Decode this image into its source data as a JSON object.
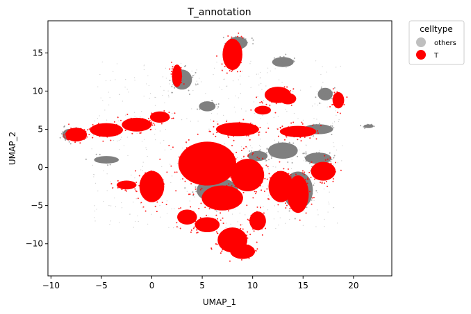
{
  "chart_data": {
    "type": "scatter",
    "title": "T_annotation",
    "xlabel": "UMAP_1",
    "ylabel": "UMAP_2",
    "xlim": [
      -10.3,
      23.8
    ],
    "ylim": [
      -14.2,
      19.2
    ],
    "xticks": [
      -10,
      -5,
      0,
      5,
      10,
      15,
      20
    ],
    "yticks": [
      -10,
      -5,
      0,
      5,
      10,
      15
    ],
    "xtick_labels": [
      "−10",
      "−5",
      "0",
      "5",
      "10",
      "15",
      "20"
    ],
    "ytick_labels": [
      "−10",
      "−5",
      "0",
      "5",
      "10",
      "15"
    ],
    "grid": false,
    "legend": {
      "title": "celltype",
      "placement": "outside-right-top",
      "entries": [
        {
          "label": "others",
          "color": "#bfbfbf"
        },
        {
          "label": "T",
          "color": "#ff0000"
        }
      ]
    },
    "series": [
      {
        "name": "others",
        "color": "#808080",
        "clusters": [
          {
            "x": -8.2,
            "y": 4.3,
            "rx": 0.8,
            "ry": 0.9
          },
          {
            "x": 3.0,
            "y": 11.5,
            "rx": 1.2,
            "ry": 1.6
          },
          {
            "x": 5.5,
            "y": 8.0,
            "rx": 1.0,
            "ry": 0.8
          },
          {
            "x": 13.0,
            "y": 13.8,
            "rx": 1.3,
            "ry": 0.8
          },
          {
            "x": 17.2,
            "y": 9.6,
            "rx": 0.9,
            "ry": 1.0
          },
          {
            "x": 21.5,
            "y": 5.4,
            "rx": 0.6,
            "ry": 0.3
          },
          {
            "x": 13.0,
            "y": 2.2,
            "rx": 1.8,
            "ry": 1.3
          },
          {
            "x": 16.5,
            "y": 1.2,
            "rx": 1.6,
            "ry": 0.9
          },
          {
            "x": 14.5,
            "y": -3.0,
            "rx": 1.8,
            "ry": 3.0
          },
          {
            "x": 16.5,
            "y": 5.0,
            "rx": 1.8,
            "ry": 0.8
          },
          {
            "x": 6.5,
            "y": -3.0,
            "rx": 2.5,
            "ry": 2.0
          },
          {
            "x": 8.5,
            "y": 16.3,
            "rx": 1.2,
            "ry": 1.0
          },
          {
            "x": -4.5,
            "y": 1.0,
            "rx": 1.5,
            "ry": 0.6
          },
          {
            "x": 10.5,
            "y": 1.5,
            "rx": 1.2,
            "ry": 0.8
          }
        ]
      },
      {
        "name": "T",
        "color": "#ff0000",
        "clusters": [
          {
            "x": -7.5,
            "y": 4.3,
            "rx": 1.3,
            "ry": 1.1
          },
          {
            "x": -4.5,
            "y": 4.9,
            "rx": 2.0,
            "ry": 1.1
          },
          {
            "x": -1.5,
            "y": 5.6,
            "rx": 1.8,
            "ry": 1.1
          },
          {
            "x": 0.8,
            "y": 6.6,
            "rx": 1.2,
            "ry": 0.9
          },
          {
            "x": 8.0,
            "y": 14.8,
            "rx": 1.2,
            "ry": 2.5
          },
          {
            "x": 2.5,
            "y": 12.0,
            "rx": 0.6,
            "ry": 1.8
          },
          {
            "x": 12.5,
            "y": 9.5,
            "rx": 1.6,
            "ry": 1.3
          },
          {
            "x": 11.0,
            "y": 7.5,
            "rx": 1.0,
            "ry": 0.7
          },
          {
            "x": 18.5,
            "y": 8.8,
            "rx": 0.7,
            "ry": 1.3
          },
          {
            "x": 14.5,
            "y": 4.7,
            "rx": 2.2,
            "ry": 0.9
          },
          {
            "x": 8.5,
            "y": 5.0,
            "rx": 2.6,
            "ry": 1.1
          },
          {
            "x": 5.5,
            "y": 0.5,
            "rx": 3.5,
            "ry": 3.5
          },
          {
            "x": 9.5,
            "y": -1.0,
            "rx": 2.0,
            "ry": 2.6
          },
          {
            "x": 7.0,
            "y": -4.0,
            "rx": 2.5,
            "ry": 2.0
          },
          {
            "x": 8.0,
            "y": -9.5,
            "rx": 1.8,
            "ry": 2.0
          },
          {
            "x": 9.0,
            "y": -11.0,
            "rx": 1.5,
            "ry": 1.2
          },
          {
            "x": 12.8,
            "y": -2.5,
            "rx": 1.5,
            "ry": 2.5
          },
          {
            "x": 14.5,
            "y": -3.5,
            "rx": 1.3,
            "ry": 3.0
          },
          {
            "x": 17.0,
            "y": -0.5,
            "rx": 1.5,
            "ry": 1.5
          },
          {
            "x": 0.0,
            "y": -2.5,
            "rx": 1.5,
            "ry": 2.5
          },
          {
            "x": -2.5,
            "y": -2.3,
            "rx": 1.2,
            "ry": 0.7
          },
          {
            "x": 3.5,
            "y": -6.5,
            "rx": 1.2,
            "ry": 1.2
          },
          {
            "x": 5.5,
            "y": -7.5,
            "rx": 1.5,
            "ry": 1.2
          },
          {
            "x": 10.5,
            "y": -7.0,
            "rx": 1.0,
            "ry": 1.5
          },
          {
            "x": 13.5,
            "y": 9.0,
            "rx": 1.0,
            "ry": 0.9
          }
        ]
      }
    ]
  }
}
